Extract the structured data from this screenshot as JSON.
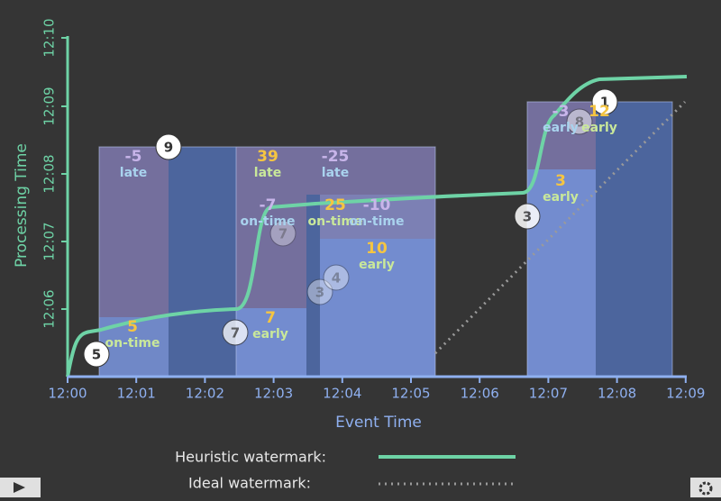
{
  "axes": {
    "y_label": "Processing Time",
    "x_label": "Event Time",
    "y_ticks": [
      "12:10",
      "12:09",
      "12:08",
      "12:07",
      "12:06"
    ],
    "x_ticks": [
      "12:00",
      "12:01",
      "12:02",
      "12:03",
      "12:04",
      "12:05",
      "12:06",
      "12:07",
      "12:08",
      "12:09"
    ]
  },
  "annotations": [
    {
      "value": "-5",
      "status": "late"
    },
    {
      "value": "39",
      "status": "late"
    },
    {
      "value": "-25",
      "status": "late"
    },
    {
      "value": "-7",
      "status": "on-time"
    },
    {
      "value": "25",
      "status": "on-time"
    },
    {
      "value": "-10",
      "status": "on-time"
    },
    {
      "value": "10",
      "status": "early"
    },
    {
      "value": "5",
      "status": "on-time"
    },
    {
      "value": "7",
      "status": "early"
    },
    {
      "value": "3",
      "status": "early"
    },
    {
      "value": "-3",
      "status": "early"
    },
    {
      "value": "12",
      "status": "early"
    }
  ],
  "markers": [
    "5",
    "9",
    "7",
    "7",
    "3",
    "4",
    "3",
    "8",
    "1"
  ],
  "legend": {
    "heuristic": "Heuristic watermark:",
    "ideal": "Ideal watermark:"
  }
}
